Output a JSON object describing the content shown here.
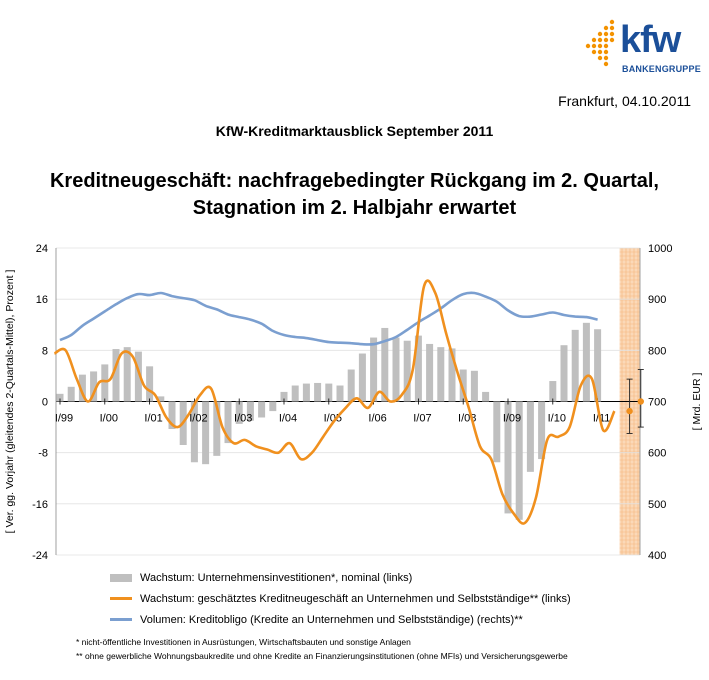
{
  "header": {
    "brand_word": "kfw",
    "brand_sub": "BANKENGRUPPE",
    "date": "Frankfurt, 04.10.2011",
    "report_title": "KfW-Kreditmarktausblick September 2011",
    "headline_line1": "Kreditneugeschäft: nachfragebedingter Rückgang im 2. Quartal,",
    "headline_line2": "Stagnation im 2. Halbjahr erwartet"
  },
  "colors": {
    "bars": "#bfbfbf",
    "growth_line": "#f0901e",
    "volume_line": "#7b9fd0",
    "forecast_band": "#fbd9b8",
    "brand": "#1b4f99"
  },
  "chart_data": {
    "type": "bar",
    "xlabel": "",
    "ylabel_left": "[ Ver. gg. Vorjahr (gleitendes 2-Quartals-Mittel), Prozent ]",
    "ylabel_right": "[ Mrd. EUR ]",
    "ylim_left": [
      -24,
      24
    ],
    "ylim_right": [
      400,
      1000
    ],
    "yticks_left": [
      "24",
      "16",
      "8",
      "0",
      "-8",
      "-16",
      "-24"
    ],
    "yticks_right": [
      "1000",
      "900",
      "800",
      "700",
      "600",
      "500",
      "400"
    ],
    "x_tick_labels": [
      "I/99",
      "I/00",
      "I/01",
      "I/02",
      "I/03",
      "I/04",
      "I/05",
      "I/06",
      "I/07",
      "I/08",
      "I/09",
      "I/10",
      "I/11"
    ],
    "forecast_region_start_quarter": 50.5,
    "series": [
      {
        "name": "Wachstum: Unternehmensinvestitionen*, nominal (links)",
        "kind": "bar",
        "axis": "left",
        "values": [
          1.2,
          2.3,
          4.2,
          4.7,
          5.8,
          8.2,
          8.5,
          7.8,
          5.5,
          0.8,
          -4.3,
          -6.8,
          -9.5,
          -9.8,
          -8.5,
          -6.5,
          -3.5,
          -3,
          -2.5,
          -1.5,
          1.5,
          2.5,
          2.8,
          2.9,
          2.8,
          2.5,
          5,
          7.5,
          10,
          11.5,
          10,
          9.5,
          10.3,
          9,
          8.5,
          8.3,
          5,
          4.8,
          1.5,
          -9.5,
          -17.5,
          -18.5,
          -11,
          -9,
          3.2,
          8.8,
          11.2,
          12.3,
          11.3
        ]
      },
      {
        "name": "Wachstum: geschätztes Kreditneugeschäft an Unternehmen und Selbstständige** (links)",
        "kind": "line",
        "axis": "left",
        "values": [
          7.5,
          8,
          3.5,
          0,
          3,
          3.5,
          7.5,
          7,
          2.5,
          1,
          -2.5,
          -4,
          -2,
          1,
          2,
          -4,
          -6.5,
          -6,
          -7,
          -7.5,
          -8,
          -6.5,
          -9,
          -8,
          -5.5,
          -3,
          -1,
          0.5,
          -1,
          1.5,
          0,
          1,
          5,
          18,
          17,
          10.5,
          4.5,
          -1,
          -7,
          -9,
          -14.5,
          -17.5,
          -19,
          -15,
          -6,
          -5.5,
          -4,
          2.5,
          3.5,
          -4.5,
          -1.5
        ]
      },
      {
        "name": "Volumen: Kreditobligo (Kredite an Unternehmen und Selbstständige) (rechts)**",
        "kind": "line",
        "axis": "right",
        "values": [
          820,
          830,
          848,
          862,
          876,
          890,
          902,
          910,
          908,
          912,
          906,
          902,
          898,
          887,
          880,
          870,
          865,
          860,
          852,
          838,
          830,
          826,
          824,
          820,
          816,
          815,
          814,
          812,
          812,
          818,
          826,
          840,
          855,
          868,
          882,
          898,
          910,
          912,
          905,
          895,
          878,
          867,
          866,
          870,
          874,
          869,
          866,
          865,
          860
        ]
      }
    ],
    "forecast_points": [
      {
        "series": "Kreditneugeschäft",
        "axis": "left",
        "quarter": 50.5,
        "value": -1.5,
        "low": -5,
        "high": 3.5
      },
      {
        "series": "Kreditneugeschäft",
        "axis": "left",
        "quarter": 51.5,
        "value": 0,
        "low": -4,
        "high": 5
      }
    ]
  },
  "legend": {
    "bars": "Wachstum: Unternehmensinvestitionen*, nominal (links)",
    "growth": "Wachstum: geschätztes Kreditneugeschäft an Unternehmen und Selbstständige** (links)",
    "volume": "Volumen: Kreditobligo (Kredite an Unternehmen und Selbstständige) (rechts)**"
  },
  "footnotes": {
    "note1": "* nicht-öffentliche Investitionen in Ausrüstungen, Wirtschaftsbauten und sonstige Anlagen",
    "note2": "** ohne gewerbliche Wohnungsbaukredite und ohne Kredite an Finanzierungsinstitutionen (ohne MFIs) und Versicherungsgewerbe"
  }
}
